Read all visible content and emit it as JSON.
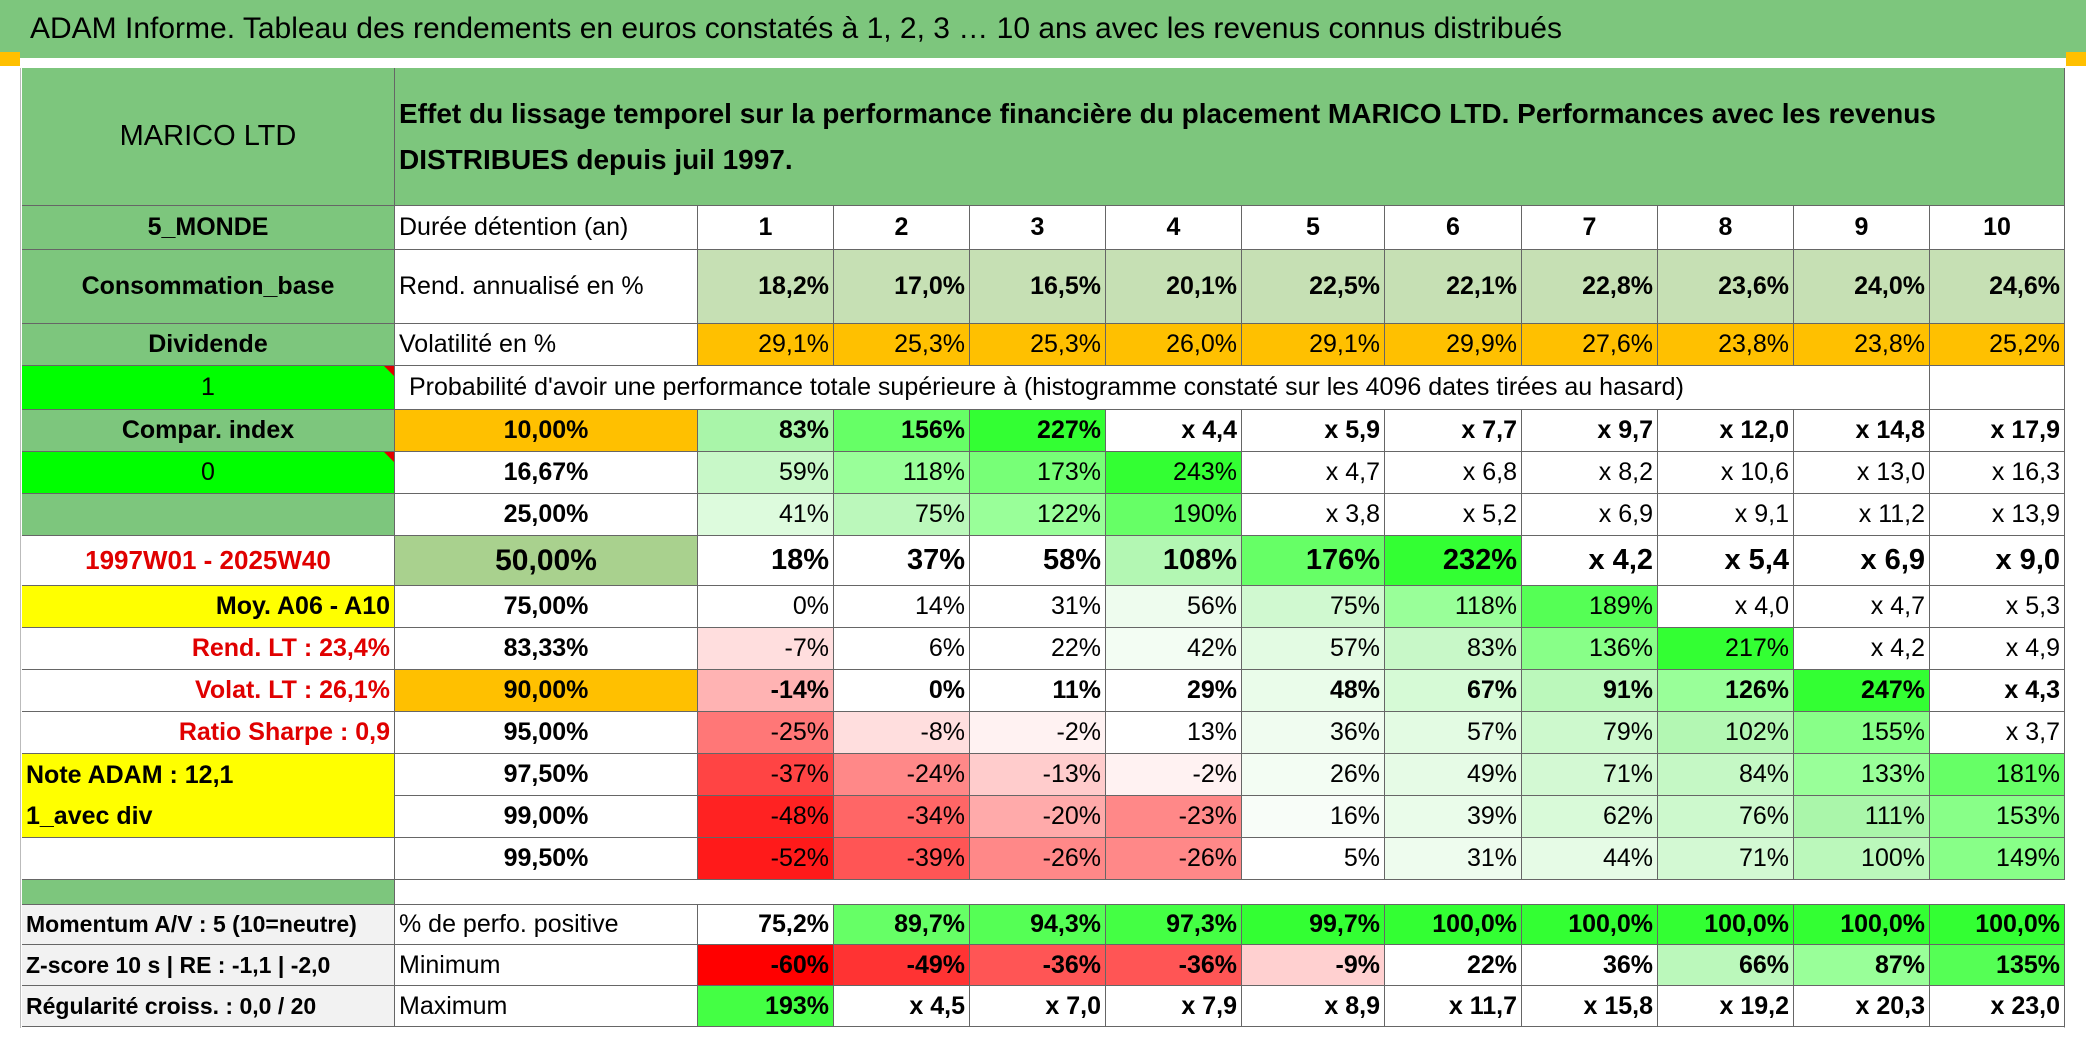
{
  "title": "ADAM Informe. Tableau des rendements en euros constatés à 1, 2, 3 … 10 ans avec les revenus connus distribués",
  "colors": {
    "header_green": "#7dc67d",
    "bright_green": "#00ff00",
    "orange": "#ffc000",
    "yellow": "#ffff00",
    "red_text": "#e00000"
  },
  "left_panel": {
    "fund_name": "MARICO LTD",
    "zone": "5_MONDE",
    "sector": "Consommation_base",
    "dist_type": "Dividende",
    "selector_1": "1",
    "compar_label": "Compar. index",
    "selector_0": "0",
    "period": "1997W01 - 2025W40",
    "avg_label": "Moy. A06 - A10",
    "rend_lt": "Rend. LT :   23,4%",
    "volat_lt": "Volat. LT :   26,1%",
    "sharpe": "Ratio Sharpe :    0,9",
    "note": "Note ADAM : 12,1",
    "mode": "1_avec div",
    "momentum": "Momentum A/V : 5 (10=neutre)",
    "zscore": "Z-score 10 s | RE : -1,1 | -2,0",
    "regularity": "Régularité croiss. : 0,0 / 20"
  },
  "header": {
    "description": "Effet du lissage temporel sur la performance financière du placement MARICO LTD. Performances avec les revenus DISTRIBUES depuis juil 1997.",
    "duration_label": "Durée détention (an)",
    "years": [
      "1",
      "2",
      "3",
      "4",
      "5",
      "6",
      "7",
      "8",
      "9",
      "10"
    ]
  },
  "rend_row": {
    "label": "Rend. annualisé en %",
    "values": [
      "18,2%",
      "17,0%",
      "16,5%",
      "20,1%",
      "22,5%",
      "22,1%",
      "22,8%",
      "23,6%",
      "24,0%",
      "24,6%"
    ]
  },
  "vol_row": {
    "label": "Volatilité en %",
    "values": [
      "29,1%",
      "25,3%",
      "25,3%",
      "26,0%",
      "29,1%",
      "29,9%",
      "27,6%",
      "23,8%",
      "23,8%",
      "25,2%"
    ],
    "colors": [
      "#ffc000",
      "#ffc000",
      "#ffc000",
      "#ffc000",
      "#ffc000",
      "#ffc000",
      "#ffc000",
      "#ffc000",
      "#ffc000",
      "#ffc000"
    ]
  },
  "prob_title": "Probabilité d'avoir une performance totale supérieure à (histogramme constaté sur les 4096 dates tirées au hasard)",
  "prob_rows": [
    {
      "pct": "10,00%",
      "values": [
        "83%",
        "156%",
        "227%",
        "x 4,4",
        "x 5,9",
        "x 7,7",
        "x 9,7",
        "x 12,0",
        "x 14,8",
        "x 17,9"
      ],
      "colors": [
        "#a9f5a9",
        "#66ff66",
        "#33ff33",
        "#ffffff",
        "#ffffff",
        "#ffffff",
        "#ffffff",
        "#ffffff",
        "#ffffff",
        "#ffffff"
      ]
    },
    {
      "pct": "16,67%",
      "values": [
        "59%",
        "118%",
        "173%",
        "243%",
        "x 4,7",
        "x 6,8",
        "x 8,2",
        "x 10,6",
        "x 13,0",
        "x 16,3"
      ],
      "colors": [
        "#c8f8c8",
        "#99ff99",
        "#77ff77",
        "#33ff33",
        "#ffffff",
        "#ffffff",
        "#ffffff",
        "#ffffff",
        "#ffffff",
        "#ffffff"
      ]
    },
    {
      "pct": "25,00%",
      "values": [
        "41%",
        "75%",
        "122%",
        "190%",
        "x 3,8",
        "x 5,2",
        "x 6,9",
        "x 9,1",
        "x 11,2",
        "x 13,9"
      ],
      "colors": [
        "#ddfbdd",
        "#bbf8bb",
        "#99ff99",
        "#66ff66",
        "#ffffff",
        "#ffffff",
        "#ffffff",
        "#ffffff",
        "#ffffff",
        "#ffffff"
      ]
    },
    {
      "pct": "50,00%",
      "values": [
        "18%",
        "37%",
        "58%",
        "108%",
        "176%",
        "232%",
        "x 4,2",
        "x 5,4",
        "x 6,9",
        "x 9,0"
      ],
      "colors": [
        "#ffffff",
        "#ffffff",
        "#ffffff",
        "#b3f7b3",
        "#66ff66",
        "#33ff33",
        "#ffffff",
        "#ffffff",
        "#ffffff",
        "#ffffff"
      ]
    },
    {
      "pct": "75,00%",
      "values": [
        "0%",
        "14%",
        "31%",
        "56%",
        "75%",
        "118%",
        "189%",
        "x 4,0",
        "x 4,7",
        "x 5,3"
      ],
      "colors": [
        "#ffffff",
        "#ffffff",
        "#ffffff",
        "#eefcee",
        "#d0f9d0",
        "#99ff99",
        "#55ff55",
        "#ffffff",
        "#ffffff",
        "#ffffff"
      ]
    },
    {
      "pct": "83,33%",
      "values": [
        "-7%",
        "6%",
        "22%",
        "42%",
        "57%",
        "83%",
        "136%",
        "217%",
        "x 4,2",
        "x 4,9"
      ],
      "colors": [
        "#ffdede",
        "#ffffff",
        "#ffffff",
        "#f3fdf3",
        "#e3fbe3",
        "#c8f8c8",
        "#88ff88",
        "#33ff33",
        "#ffffff",
        "#ffffff"
      ]
    },
    {
      "pct": "90,00%",
      "values": [
        "-14%",
        "0%",
        "11%",
        "29%",
        "48%",
        "67%",
        "91%",
        "126%",
        "247%",
        "x 4,3"
      ],
      "colors": [
        "#ffb3b3",
        "#ffffff",
        "#ffffff",
        "#ffffff",
        "#eafcea",
        "#d6fad6",
        "#bbf8bb",
        "#99ff99",
        "#33ff33",
        "#ffffff"
      ]
    },
    {
      "pct": "95,00%",
      "values": [
        "-25%",
        "-8%",
        "-2%",
        "13%",
        "36%",
        "57%",
        "79%",
        "102%",
        "155%",
        "x 3,7"
      ],
      "colors": [
        "#ff7777",
        "#ffdede",
        "#fff2f2",
        "#ffffff",
        "#f0fcf0",
        "#e3fbe3",
        "#cdf9cd",
        "#b3f7b3",
        "#88ff88",
        "#ffffff"
      ]
    },
    {
      "pct": "97,50%",
      "values": [
        "-37%",
        "-24%",
        "-13%",
        "-2%",
        "26%",
        "49%",
        "71%",
        "84%",
        "133%",
        "181%"
      ],
      "colors": [
        "#ff4444",
        "#ff8888",
        "#ffcccc",
        "#fff2f2",
        "#f3fdf3",
        "#e6fbe6",
        "#d3f9d3",
        "#c5f8c5",
        "#99ff99",
        "#66ff66"
      ]
    },
    {
      "pct": "99,00%",
      "values": [
        "-48%",
        "-34%",
        "-20%",
        "-23%",
        "16%",
        "39%",
        "62%",
        "76%",
        "111%",
        "153%"
      ],
      "colors": [
        "#ff2222",
        "#ff6666",
        "#ffaaaa",
        "#ff8888",
        "#f8fdf8",
        "#eafcea",
        "#d9fad9",
        "#cdf9cd",
        "#aaf6aa",
        "#88ff88"
      ]
    },
    {
      "pct": "99,50%",
      "values": [
        "-52%",
        "-39%",
        "-26%",
        "-26%",
        "5%",
        "31%",
        "44%",
        "71%",
        "100%",
        "149%"
      ],
      "colors": [
        "#ff1a1a",
        "#ff5555",
        "#ff8888",
        "#ff8888",
        "#ffffff",
        "#eefcee",
        "#e6fbe6",
        "#d3f9d3",
        "#bbf8bb",
        "#88ff88"
      ]
    }
  ],
  "stats": {
    "positive": {
      "label": "% de perfo. positive",
      "values": [
        "75,2%",
        "89,7%",
        "94,3%",
        "97,3%",
        "99,7%",
        "100,0%",
        "100,0%",
        "100,0%",
        "100,0%",
        "100,0%"
      ],
      "colors": [
        "#ffffff",
        "#66ff66",
        "#55ff55",
        "#44ff44",
        "#33ff33",
        "#33ff33",
        "#33ff33",
        "#33ff33",
        "#33ff33",
        "#33ff33"
      ]
    },
    "minimum": {
      "label": "Minimum",
      "values": [
        "-60%",
        "-49%",
        "-36%",
        "-36%",
        "-9%",
        "22%",
        "36%",
        "66%",
        "87%",
        "135%"
      ],
      "colors": [
        "#ff0000",
        "#ff3333",
        "#ff5555",
        "#ff5555",
        "#ffd0d0",
        "#ffffff",
        "#ffffff",
        "#bbf8bb",
        "#99ff99",
        "#55ff55"
      ]
    },
    "maximum": {
      "label": "Maximum",
      "values": [
        "193%",
        "x 4,5",
        "x 7,0",
        "x 7,9",
        "x 8,9",
        "x 11,7",
        "x 15,8",
        "x 19,2",
        "x 20,3",
        "x 23,0"
      ],
      "colors": [
        "#44ff44",
        "#ffffff",
        "#ffffff",
        "#ffffff",
        "#ffffff",
        "#ffffff",
        "#ffffff",
        "#ffffff",
        "#ffffff",
        "#ffffff"
      ]
    }
  }
}
